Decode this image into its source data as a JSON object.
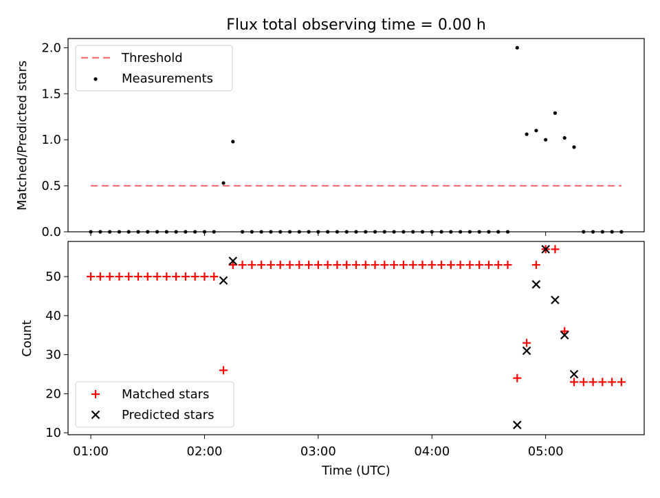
{
  "title": "Flux total observing time = 0.00 h",
  "colors": {
    "threshold": "#ff7070",
    "measurements": "#000000",
    "matched": "#ff0000",
    "predicted": "#000000"
  },
  "chart_data": [
    {
      "type": "scatter",
      "ylabel": "Matched/Predicted stars",
      "ylim": [
        0,
        2.1
      ],
      "xlim": [
        "00:48",
        "05:52"
      ],
      "yticks": [
        "0.0",
        "0.5",
        "1.0",
        "1.5",
        "2.0"
      ],
      "grid": false,
      "legend_position": "upper-left",
      "threshold": {
        "name": "Threshold",
        "style": "dashed",
        "x": [
          "01:00",
          "05:40"
        ],
        "y": 0.5
      },
      "series": [
        {
          "name": "Measurements",
          "marker": "dot",
          "x": [
            "01:00",
            "01:05",
            "01:10",
            "01:15",
            "01:20",
            "01:25",
            "01:30",
            "01:35",
            "01:40",
            "01:45",
            "01:50",
            "01:55",
            "02:00",
            "02:05",
            "02:10",
            "02:15",
            "02:20",
            "02:25",
            "02:30",
            "02:35",
            "02:40",
            "02:45",
            "02:50",
            "02:55",
            "03:00",
            "03:05",
            "03:10",
            "03:15",
            "03:20",
            "03:25",
            "03:30",
            "03:35",
            "03:40",
            "03:45",
            "03:50",
            "03:55",
            "04:00",
            "04:05",
            "04:10",
            "04:15",
            "04:20",
            "04:25",
            "04:30",
            "04:35",
            "04:40",
            "04:45",
            "04:50",
            "04:55",
            "05:00",
            "05:05",
            "05:10",
            "05:15",
            "05:20",
            "05:25",
            "05:30",
            "05:35",
            "05:40"
          ],
          "y": [
            0,
            0,
            0,
            0,
            0,
            0,
            0,
            0,
            0,
            0,
            0,
            0,
            0,
            0,
            0.53,
            0.98,
            0,
            0,
            0,
            0,
            0,
            0,
            0,
            0,
            0,
            0,
            0,
            0,
            0,
            0,
            0,
            0,
            0,
            0,
            0,
            0,
            0,
            0,
            0,
            0,
            0,
            0,
            0,
            0,
            0,
            2.0,
            1.06,
            1.1,
            1.0,
            1.29,
            1.02,
            0.92,
            0,
            0,
            0,
            0,
            0
          ]
        }
      ]
    },
    {
      "type": "scatter",
      "xlabel": "Time (UTC)",
      "ylabel": "Count",
      "ylim": [
        9.5,
        59
      ],
      "xlim": [
        "00:48",
        "05:52"
      ],
      "xticks": [
        "01:00",
        "02:00",
        "03:00",
        "04:00",
        "05:00"
      ],
      "yticks": [
        "10",
        "20",
        "30",
        "40",
        "50"
      ],
      "grid": false,
      "legend_position": "lower-left",
      "series": [
        {
          "name": "Matched stars",
          "marker": "plus",
          "x": [
            "01:00",
            "01:05",
            "01:10",
            "01:15",
            "01:20",
            "01:25",
            "01:30",
            "01:35",
            "01:40",
            "01:45",
            "01:50",
            "01:55",
            "02:00",
            "02:05",
            "02:10",
            "02:15",
            "02:20",
            "02:25",
            "02:30",
            "02:35",
            "02:40",
            "02:45",
            "02:50",
            "02:55",
            "03:00",
            "03:05",
            "03:10",
            "03:15",
            "03:20",
            "03:25",
            "03:30",
            "03:35",
            "03:40",
            "03:45",
            "03:50",
            "03:55",
            "04:00",
            "04:05",
            "04:10",
            "04:15",
            "04:20",
            "04:25",
            "04:30",
            "04:35",
            "04:40",
            "04:45",
            "04:50",
            "04:55",
            "05:00",
            "05:05",
            "05:10",
            "05:15",
            "05:20",
            "05:25",
            "05:30",
            "05:35",
            "05:40"
          ],
          "y": [
            50,
            50,
            50,
            50,
            50,
            50,
            50,
            50,
            50,
            50,
            50,
            50,
            50,
            50,
            26,
            53,
            53,
            53,
            53,
            53,
            53,
            53,
            53,
            53,
            53,
            53,
            53,
            53,
            53,
            53,
            53,
            53,
            53,
            53,
            53,
            53,
            53,
            53,
            53,
            53,
            53,
            53,
            53,
            53,
            53,
            24,
            33,
            53,
            57,
            57,
            36,
            23,
            23,
            23,
            23,
            23,
            23
          ]
        },
        {
          "name": "Predicted stars",
          "marker": "x",
          "x": [
            "02:10",
            "02:15",
            "04:45",
            "04:50",
            "04:55",
            "05:00",
            "05:05",
            "05:10",
            "05:15"
          ],
          "y": [
            49,
            54,
            12,
            31,
            48,
            57,
            44,
            35,
            25
          ]
        }
      ]
    }
  ]
}
